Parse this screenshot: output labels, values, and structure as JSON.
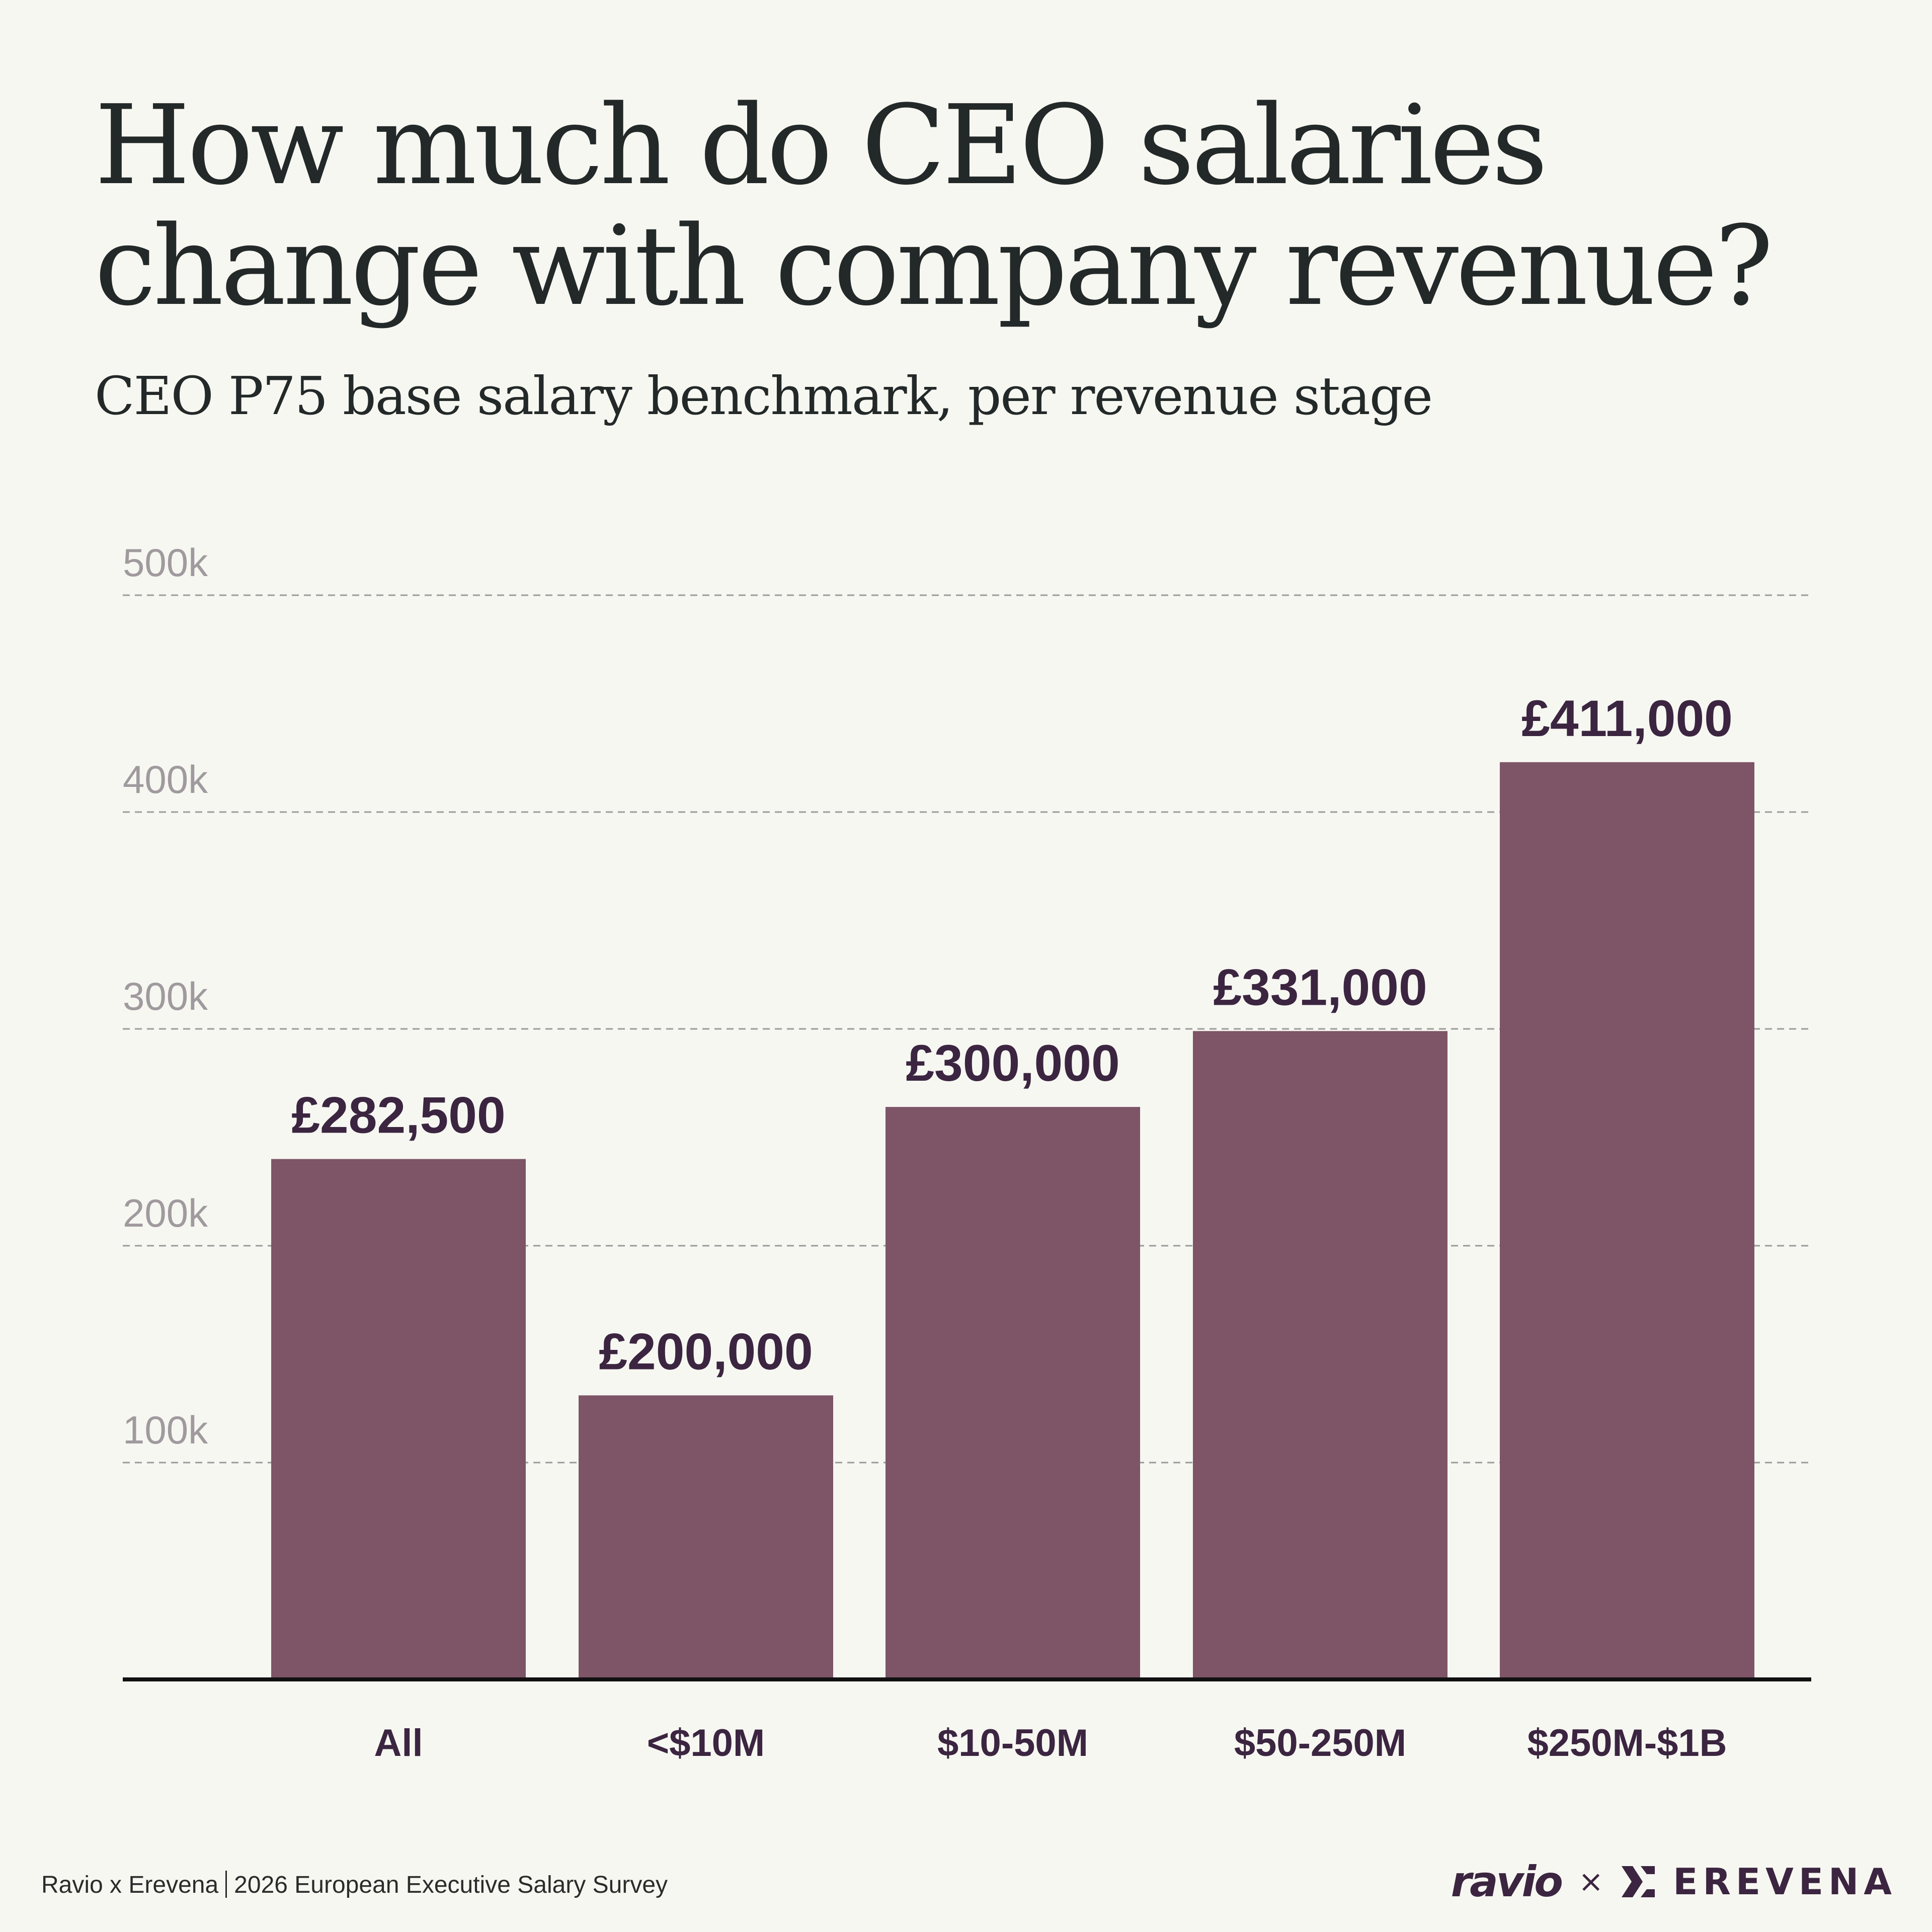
{
  "header": {
    "title": "How much do CEO salaries change with company revenue?",
    "subtitle": "CEO P75 base salary benchmark, per revenue stage"
  },
  "chart_data": {
    "type": "bar",
    "title": "How much do CEO salaries change with company revenue?",
    "subtitle": "CEO P75 base salary benchmark, per revenue stage",
    "categories": [
      "All",
      "<$10M",
      "$10-50M",
      "$50-250M",
      "$250M-$1B"
    ],
    "values": [
      282500,
      200000,
      300000,
      331000,
      411000
    ],
    "value_labels": [
      "£282,500",
      "£200,000",
      "£300,000",
      "£331,000",
      "£411,000"
    ],
    "bar_fill_levels": [
      240000,
      131000,
      264000,
      299000,
      423000
    ],
    "y_ticks": [
      100000,
      200000,
      300000,
      400000,
      500000
    ],
    "y_tick_labels": [
      "100k",
      "200k",
      "300k",
      "400k",
      "500k"
    ],
    "ylim": [
      0,
      500000
    ],
    "grid": true,
    "grid_style": "dashed",
    "xlabel": "",
    "ylabel": "",
    "colors": {
      "bar": "#7d5566",
      "value_label": "#3b2540",
      "category_label": "#3b2540",
      "tick_label": "#a09a9e",
      "grid": "#9b9b9b",
      "axis": "#111111"
    }
  },
  "footer": {
    "source_left": "Ravio x Erevena",
    "source_right": "2026 European Executive Salary Survey"
  },
  "logos": {
    "ravio": "ravio",
    "times": "×",
    "erevena_mark": "erevena-mark-icon",
    "erevena": "EREVENA"
  }
}
